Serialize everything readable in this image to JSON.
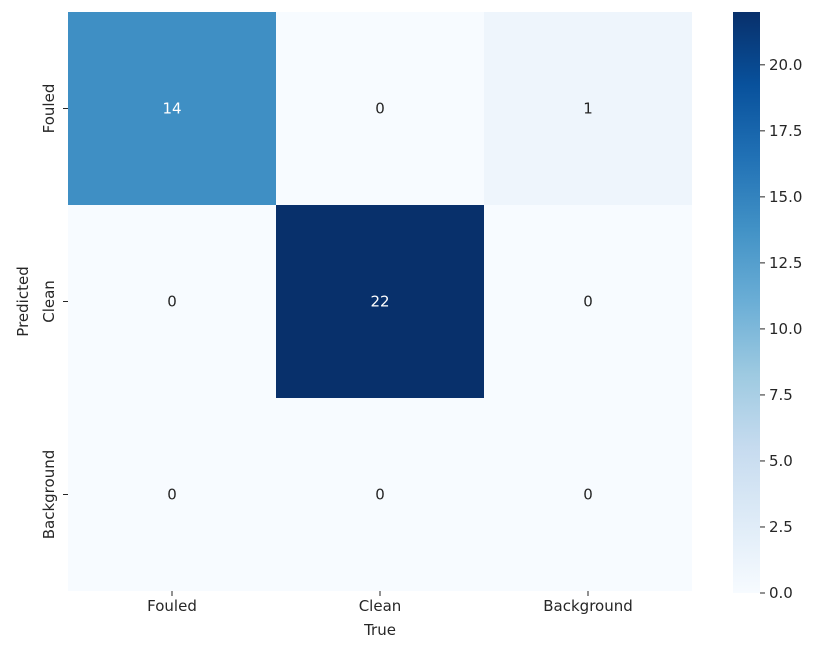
{
  "chart_data": {
    "type": "heatmap",
    "title": "",
    "xlabel": "True",
    "ylabel": "Predicted",
    "x_categories": [
      "Fouled",
      "Clean",
      "Background"
    ],
    "y_categories": [
      "Fouled",
      "Clean",
      "Background"
    ],
    "values": [
      [
        14,
        0,
        1
      ],
      [
        0,
        22,
        0
      ],
      [
        0,
        0,
        0
      ]
    ],
    "colormap": "Blues",
    "colorbar": {
      "min": 0,
      "max": 22,
      "ticks": [
        0.0,
        2.5,
        5.0,
        7.5,
        10.0,
        12.5,
        15.0,
        17.5,
        20.0
      ],
      "tick_labels": [
        "0.0",
        "2.5",
        "5.0",
        "7.5",
        "10.0",
        "12.5",
        "15.0",
        "17.5",
        "20.0"
      ]
    },
    "annotations": true,
    "grid": false
  }
}
